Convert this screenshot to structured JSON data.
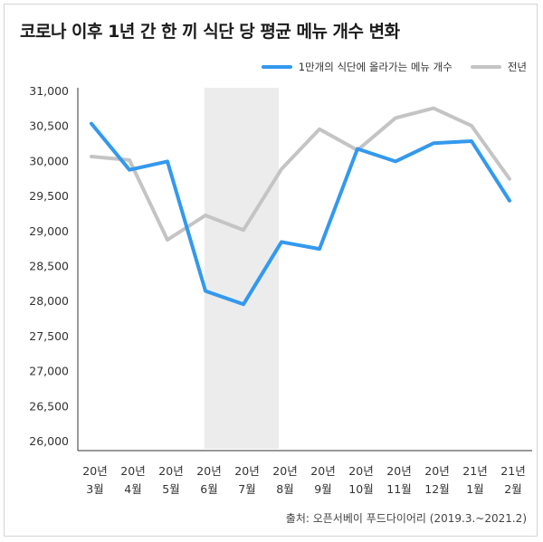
{
  "title": "코로나 이후 1년 간 한 끼 식단 당 평균 메뉴 개수 변화",
  "source": "출처: 오픈서베이 푸드다이어리 (2019.3.~2021.2)",
  "chart_data": {
    "type": "line",
    "categories": [
      [
        "20년",
        "3월"
      ],
      [
        "20년",
        "4월"
      ],
      [
        "20년",
        "5월"
      ],
      [
        "20년",
        "6월"
      ],
      [
        "20년",
        "7월"
      ],
      [
        "20년",
        "8월"
      ],
      [
        "20년",
        "9월"
      ],
      [
        "20년",
        "10월"
      ],
      [
        "20년",
        "11월"
      ],
      [
        "20년",
        "12월"
      ],
      [
        "21년",
        "1월"
      ],
      [
        "21년",
        "2월"
      ]
    ],
    "series": [
      {
        "name": "1만개의 식단에 올라가는 메뉴 개수",
        "color": "#3399ee",
        "values": [
          30540,
          29880,
          30000,
          28150,
          27960,
          28850,
          28750,
          30180,
          30000,
          30260,
          30290,
          29440
        ]
      },
      {
        "name": "전년",
        "color": "#c4c4c4",
        "values": [
          30070,
          30020,
          28880,
          29230,
          29020,
          29890,
          30460,
          30160,
          30620,
          30760,
          30510,
          29750
        ]
      }
    ],
    "yticks": [
      "31,000",
      "30,500",
      "30,000",
      "29,500",
      "29,000",
      "28,500",
      "28,000",
      "27,500",
      "27,000",
      "26,500",
      "26,000"
    ],
    "ylim": [
      26000,
      31000
    ],
    "highlight_range": [
      "20년 6월",
      "20년 8월"
    ],
    "grid": false,
    "legend": "top-right"
  }
}
